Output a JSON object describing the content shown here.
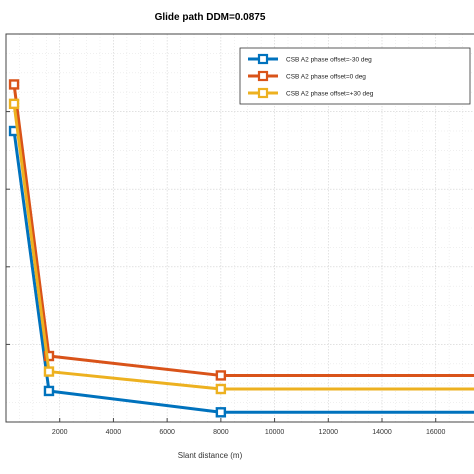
{
  "chart_data": {
    "type": "line",
    "title": "Glide path DDM=0.0875",
    "xlabel": "Slant distance (m)",
    "ylabel": "",
    "xlim": [
      0,
      17500
    ],
    "ylim": [
      0,
      100
    ],
    "x_ticks": [
      2000,
      4000,
      6000,
      8000,
      10000,
      12000,
      14000,
      16000
    ],
    "grid": true,
    "legend_position": "top-right",
    "series": [
      {
        "name": "CSB A2 phase offset=-30 deg",
        "color": "#0072BD",
        "x": [
          300,
          1600,
          8000,
          17500
        ],
        "y": [
          75,
          8,
          2.5,
          2.5
        ]
      },
      {
        "name": "CSB A2 phase offset=0 deg",
        "color": "#D95319",
        "x": [
          300,
          1600,
          8000,
          17500
        ],
        "y": [
          87,
          17,
          12,
          12
        ]
      },
      {
        "name": "CSB A2 phase offset=+30 deg",
        "color": "#EDB120",
        "x": [
          300,
          1600,
          8000,
          17500
        ],
        "y": [
          82,
          13,
          8.5,
          8.5
        ]
      }
    ]
  }
}
